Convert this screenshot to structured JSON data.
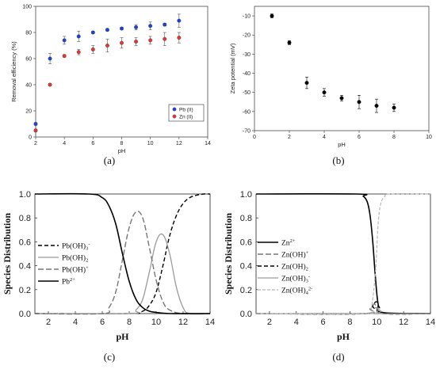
{
  "chart_data": [
    {
      "panel": "(a)",
      "type": "scatter",
      "xlabel": "pH",
      "ylabel": "Removal efficiency (%)",
      "xlim": [
        2,
        14
      ],
      "ylim": [
        0,
        100
      ],
      "xticks": [
        2,
        4,
        6,
        8,
        10,
        12,
        14
      ],
      "yticks": [
        0,
        20,
        40,
        60,
        80,
        100
      ],
      "legend_position": "bottom-right",
      "series": [
        {
          "name": "Pb (II)",
          "color": "#1f3fd6",
          "x": [
            2,
            3,
            4,
            5,
            6,
            7,
            8,
            9,
            10,
            11,
            12
          ],
          "y": [
            10,
            60,
            74,
            77,
            80,
            82,
            83,
            84,
            85,
            86,
            89
          ],
          "err": [
            1,
            4,
            3,
            4,
            1,
            1,
            1,
            2,
            3,
            1,
            5
          ]
        },
        {
          "name": "Zn (II)",
          "color": "#e33333",
          "x": [
            2,
            3,
            4,
            5,
            6,
            7,
            8,
            9,
            10,
            11,
            12
          ],
          "y": [
            5,
            40,
            62,
            65,
            67,
            70,
            72,
            73,
            74,
            75,
            76
          ],
          "err": [
            1,
            1,
            1,
            2,
            3,
            5,
            4,
            3,
            3,
            5,
            4
          ]
        }
      ]
    },
    {
      "panel": "(b)",
      "type": "scatter",
      "xlabel": "pH",
      "ylabel": "Zeta potential (mV)",
      "xlim": [
        0,
        10
      ],
      "ylim": [
        -70,
        -5
      ],
      "xticks": [
        0,
        2,
        4,
        6,
        8,
        10
      ],
      "yticks": [
        -10,
        -20,
        -30,
        -40,
        -50,
        -60,
        -70
      ],
      "series": [
        {
          "name": "",
          "color": "#000000",
          "x": [
            1,
            2,
            3,
            4,
            5,
            6,
            7,
            8
          ],
          "y": [
            -10,
            -24,
            -45,
            -50,
            -53,
            -55,
            -57,
            -58
          ],
          "err": [
            1,
            1,
            3,
            2,
            1.5,
            3.5,
            3.5,
            2
          ]
        }
      ]
    },
    {
      "panel": "(c)",
      "type": "line",
      "xlabel": "pH",
      "ylabel": "Species Distribution",
      "xlim": [
        1,
        14
      ],
      "ylim": [
        0,
        1
      ],
      "xticks": [
        2,
        4,
        6,
        8,
        10,
        12,
        14
      ],
      "yticks": [
        0.0,
        0.2,
        0.4,
        0.6,
        0.8,
        1.0
      ],
      "legend_position": "left",
      "series": [
        {
          "name": "Pb(OH)3-",
          "label_base": "Pb(OH)",
          "label_sub": "3",
          "label_sup": "-",
          "style": "black-dashed",
          "x": [
            1,
            8,
            9,
            9.5,
            10,
            10.5,
            11,
            11.5,
            12,
            12.5,
            13,
            13.5,
            14
          ],
          "y": [
            0,
            0,
            0.02,
            0.07,
            0.18,
            0.4,
            0.65,
            0.82,
            0.92,
            0.97,
            0.99,
            1.0,
            1.0
          ]
        },
        {
          "name": "Pb(OH)2",
          "label_base": "Pb(OH)",
          "label_sub": "2",
          "label_sup": "",
          "style": "gray-solid",
          "x": [
            1,
            8,
            8.5,
            9,
            9.5,
            10,
            10.5,
            11,
            11.5,
            12,
            12.5,
            14
          ],
          "y": [
            0,
            0,
            0.03,
            0.12,
            0.35,
            0.6,
            0.66,
            0.5,
            0.22,
            0.05,
            0,
            0
          ]
        },
        {
          "name": "Pb(OH)+",
          "label_base": "Pb(OH)",
          "label_sub": "",
          "label_sup": "+",
          "style": "gray-dashed",
          "x": [
            1,
            6,
            6.5,
            7,
            7.5,
            8,
            8.5,
            9,
            9.5,
            10,
            10.5,
            11,
            12,
            14
          ],
          "y": [
            0,
            0,
            0.05,
            0.18,
            0.45,
            0.72,
            0.85,
            0.8,
            0.55,
            0.28,
            0.1,
            0.03,
            0,
            0
          ]
        },
        {
          "name": "Pb2+",
          "label_base": "Pb",
          "label_sub": "",
          "label_sup": "2+",
          "style": "black-solid",
          "x": [
            1,
            5,
            6,
            6.5,
            7,
            7.5,
            8,
            8.5,
            9,
            9.5,
            10,
            11,
            14
          ],
          "y": [
            1.0,
            1.0,
            0.97,
            0.9,
            0.75,
            0.5,
            0.27,
            0.12,
            0.05,
            0.02,
            0.01,
            0,
            0
          ]
        }
      ]
    },
    {
      "panel": "(d)",
      "type": "line",
      "xlabel": "pH",
      "ylabel": "Species Distribution",
      "xlim": [
        1,
        14
      ],
      "ylim": [
        0,
        1
      ],
      "xticks": [
        2,
        4,
        6,
        8,
        10,
        12,
        14
      ],
      "yticks": [
        0.0,
        0.2,
        0.4,
        0.6,
        0.8,
        1.0
      ],
      "legend_position": "left",
      "series": [
        {
          "name": "Zn2+",
          "label_base": "Zn",
          "label_sub": "",
          "label_sup": "2+",
          "style": "black-solid",
          "x": [
            1,
            8.5,
            9,
            9.3,
            9.5,
            9.7,
            9.9,
            10.1,
            10.4,
            14
          ],
          "y": [
            1.0,
            1.0,
            0.98,
            0.93,
            0.82,
            0.6,
            0.3,
            0.08,
            0.01,
            0
          ]
        },
        {
          "name": "Zn(OH)+",
          "label_base": "Zn(OH)",
          "label_sub": "",
          "label_sup": "+",
          "style": "gray-dashed",
          "x": [
            1,
            9,
            9.5,
            9.8,
            10.1,
            10.4,
            14
          ],
          "y": [
            0,
            0,
            0.04,
            0.08,
            0.04,
            0,
            0
          ]
        },
        {
          "name": "Zn(OH)2",
          "label_base": "Zn(OH)",
          "label_sub": "2",
          "label_sup": "",
          "style": "black-dashed",
          "x": [
            1,
            9.3,
            9.7,
            9.95,
            10.2,
            10.5,
            14
          ],
          "y": [
            0,
            0,
            0.06,
            0.1,
            0.05,
            0,
            0
          ]
        },
        {
          "name": "Zn(OH)3-",
          "label_base": "Zn(OH)",
          "label_sub": "3",
          "label_sup": "-",
          "style": "gray-solid",
          "x": [
            1,
            9.5,
            9.9,
            10.1,
            10.4,
            14
          ],
          "y": [
            0,
            0,
            0.05,
            0.03,
            0,
            0
          ]
        },
        {
          "name": "Zn(OH)4 2-",
          "label_base": "Zn(OH)",
          "label_sub": "4",
          "label_sup": "2-",
          "style": "lightgray-dashed",
          "x": [
            1,
            9.3,
            9.6,
            9.9,
            10.1,
            10.3,
            10.6,
            11,
            14
          ],
          "y": [
            0,
            0,
            0.05,
            0.35,
            0.75,
            0.92,
            0.98,
            1.0,
            1.0
          ]
        }
      ]
    }
  ]
}
